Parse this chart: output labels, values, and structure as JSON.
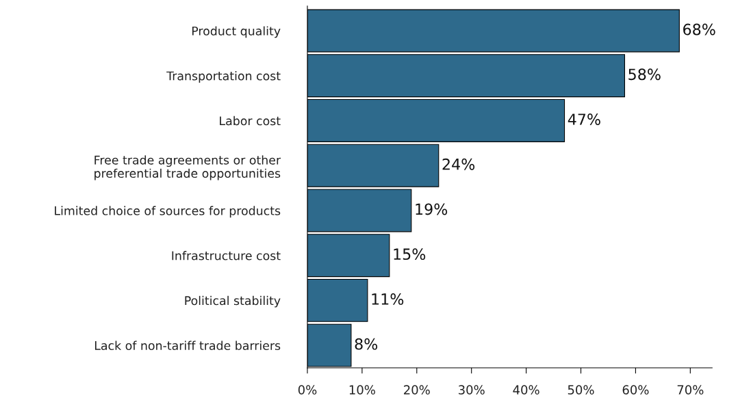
{
  "chart_data": {
    "type": "bar",
    "orientation": "horizontal",
    "categories": [
      "Product quality",
      "Transportation cost",
      "Labor cost",
      "Free trade agreements or other\npreferential trade opportunities",
      "Limited choice of sources for products",
      "Infrastructure cost",
      "Political stability",
      "Lack of non-tariff trade barriers"
    ],
    "values": [
      68,
      58,
      47,
      24,
      19,
      15,
      11,
      8
    ],
    "value_labels": [
      "68%",
      "58%",
      "47%",
      "24%",
      "19%",
      "15%",
      "11%",
      "8%"
    ],
    "color": "#2e6a8c",
    "xlim": [
      0,
      74
    ],
    "xticks": [
      {
        "value": 0,
        "label": "0%"
      },
      {
        "value": 10,
        "label": "10%"
      },
      {
        "value": 20,
        "label": "20%"
      },
      {
        "value": 30,
        "label": "30%"
      },
      {
        "value": 40,
        "label": "40%"
      },
      {
        "value": 50,
        "label": "50%"
      },
      {
        "value": 60,
        "label": "60%"
      },
      {
        "value": 70,
        "label": "70%"
      }
    ],
    "grid": false,
    "legend": false
  }
}
